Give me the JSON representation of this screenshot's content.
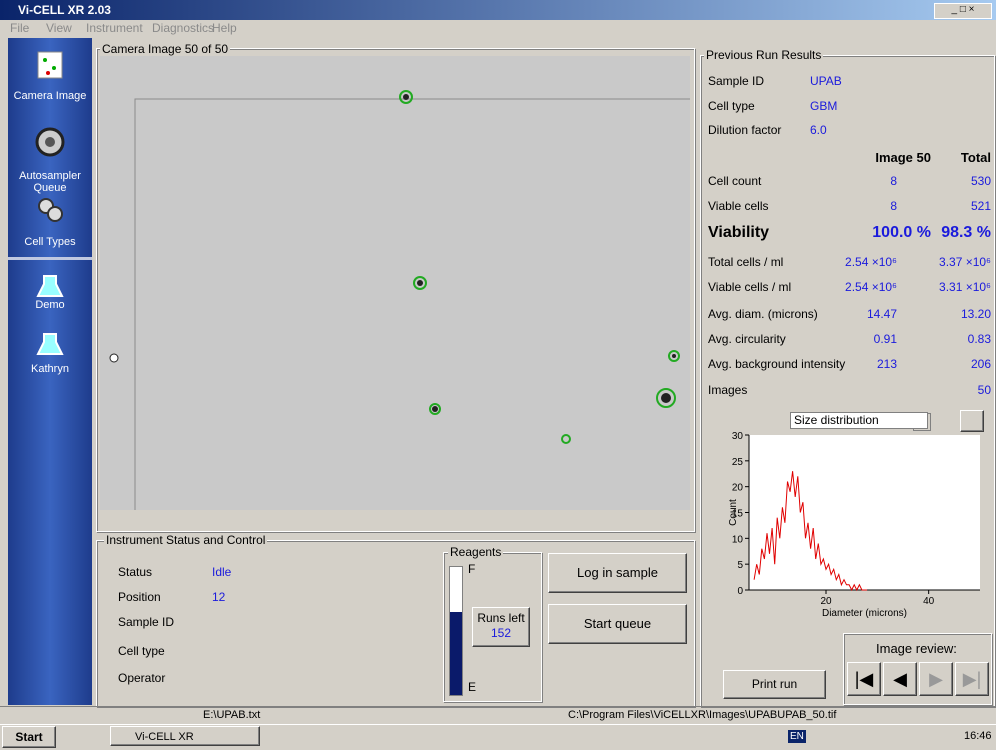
{
  "window": {
    "title": "Vi-CELL XR 2.03"
  },
  "menu": [
    "File",
    "View",
    "Instrument",
    "Diagnostics",
    "Help"
  ],
  "sidebar": [
    "Camera Image",
    "Autosampler Queue",
    "Cell Types",
    "Demo",
    "Kathryn"
  ],
  "camera": {
    "title": "Camera Image 50 of 50"
  },
  "status": {
    "title": "Instrument Status and Control",
    "rows": [
      {
        "label": "Status",
        "value": "Idle"
      },
      {
        "label": "Position",
        "value": "12"
      },
      {
        "label": "Sample ID"
      },
      {
        "label": "Cell type"
      },
      {
        "label": "Operator"
      }
    ]
  },
  "reagents": {
    "title": "Reagents",
    "full": "F",
    "empty": "E",
    "runs_label": "Runs left",
    "runs_left": 152
  },
  "buttons": [
    "Log in sample",
    "Start queue"
  ],
  "results": {
    "title": "Previous Run Results",
    "info": [
      {
        "label": "Sample ID",
        "value": "UPAB"
      },
      {
        "label": "Cell type",
        "value": "GBM"
      },
      {
        "label": "Dilution factor",
        "value": "6.0"
      }
    ],
    "columns": [
      "Image 50",
      "Total"
    ],
    "rows": [
      {
        "label": "Cell count",
        "image": "8",
        "total": "530"
      },
      {
        "label": "Viable cells",
        "image": "8",
        "total": "521"
      },
      {
        "label": "Viability",
        "image": "100.0 %",
        "total": "98.3 %"
      },
      {
        "label": "Total cells / ml",
        "image": "2.54 ×10⁶",
        "total": "3.37 ×10⁶"
      },
      {
        "label": "Viable cells / ml",
        "image": "2.54 ×10⁶",
        "total": "3.31 ×10⁶"
      },
      {
        "label": "Avg. diam. (microns)",
        "image": "14.47",
        "total": "13.20"
      },
      {
        "label": "Avg. circularity",
        "image": "0.91",
        "total": "0.83"
      },
      {
        "label": "Avg. background intensity",
        "image": "213",
        "total": "206"
      },
      {
        "label": "Images",
        "total": "50"
      }
    ]
  },
  "plot_selector": "Size distribution",
  "size_chart": {
    "type": "line",
    "xlabel": "Diameter (microns)",
    "ylabel": "Count",
    "color": "#e00000",
    "xlim": [
      5,
      50
    ],
    "ylim": [
      0,
      30
    ],
    "xticks": [
      20,
      40
    ],
    "yticks": [
      0,
      5,
      10,
      15,
      20,
      25,
      30
    ],
    "x": [
      6,
      6.5,
      7,
      7.5,
      8,
      8.5,
      9,
      9.5,
      10,
      10.5,
      11,
      11.5,
      12,
      12.5,
      13,
      13.5,
      14,
      14.5,
      15,
      15.5,
      16,
      16.5,
      17,
      17.5,
      18,
      18.5,
      19,
      19.5,
      20,
      20.5,
      21,
      21.5,
      22,
      22.5,
      23,
      23.5,
      24,
      24.5,
      25,
      25.5,
      26,
      26.5,
      27,
      28
    ],
    "values": [
      2,
      5,
      3,
      8,
      6,
      11,
      7,
      12,
      5,
      14,
      10,
      16,
      13,
      21,
      19,
      23,
      18,
      22,
      15,
      17,
      10,
      13,
      8,
      12,
      6,
      9,
      5,
      6,
      4,
      5,
      3,
      4,
      2,
      3,
      1,
      2,
      1,
      1,
      0,
      1,
      0,
      1,
      0,
      0
    ]
  },
  "print_button": "Print run",
  "image_review": "Image review:",
  "statusbar": [
    "E:\\UPAB.txt",
    "C:\\Program Files\\ViCELLXR\\Images\\UPABUPAB_50.tif"
  ],
  "taskbar": {
    "start": "Start",
    "task": "Vi-CELL XR",
    "lang": "EN",
    "clock": "16:46"
  }
}
